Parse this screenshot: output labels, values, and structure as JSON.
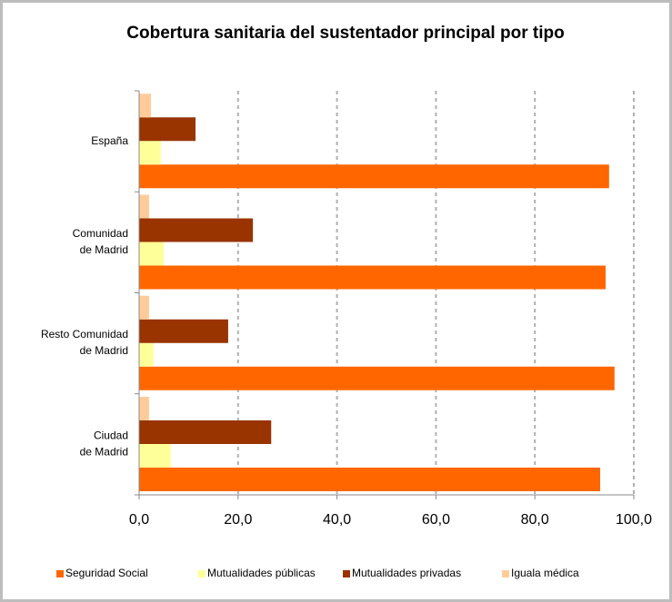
{
  "chart_data": {
    "type": "hbar",
    "title": "Cobertura sanitaria del sustentador principal por tipo",
    "categories": [
      "España",
      "Comunidad\nde Madrid",
      "Resto Comunidad\nde Madrid",
      "Ciudad\nde Madrid"
    ],
    "series": [
      {
        "name": "Seguridad Social",
        "color": "#ff6600",
        "values": [
          95.0,
          94.3,
          96.1,
          93.2
        ]
      },
      {
        "name": "Mutualidades públicas",
        "color": "#ffff99",
        "values": [
          4.4,
          5.0,
          2.9,
          6.4
        ]
      },
      {
        "name": "Mutualidades privadas",
        "color": "#993300",
        "values": [
          11.4,
          23.0,
          18.0,
          26.7
        ]
      },
      {
        "name": "Iguala médica",
        "color": "#ffcc99",
        "values": [
          2.4,
          2.0,
          2.0,
          2.0
        ]
      }
    ],
    "xlim": [
      0,
      100
    ],
    "xticks": [
      {
        "value": 0,
        "label": "0,0"
      },
      {
        "value": 20,
        "label": "20,0"
      },
      {
        "value": 40,
        "label": "40,0"
      },
      {
        "value": 60,
        "label": "60,0"
      },
      {
        "value": 80,
        "label": "80,0"
      },
      {
        "value": 100,
        "label": "100,0"
      }
    ],
    "grid": true,
    "legend": "bottom"
  }
}
